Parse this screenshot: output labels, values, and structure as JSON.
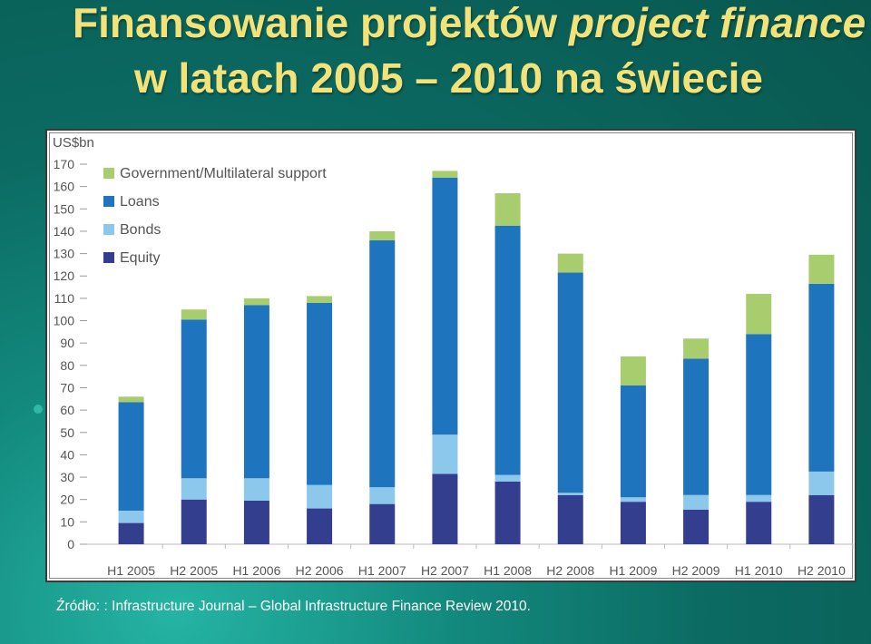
{
  "slide": {
    "title_part1": "Finansowanie projektów ",
    "title_part1_italic": "project finance",
    "title_line2": "w latach 2005 – 2010 na świecie",
    "source": "Źródło: : Infrastructure Journal – Global Infrastructure Finance Review 2010."
  },
  "chart_data": {
    "type": "bar",
    "stacked": true,
    "ylabel": "US$bn",
    "ylim": [
      0,
      170
    ],
    "ytick_step": 10,
    "grid": false,
    "legend_position": "top-left",
    "categories": [
      "H1 2005",
      "H2 2005",
      "H1 2006",
      "H2 2006",
      "H1 2007",
      "H2 2007",
      "H1 2008",
      "H2 2008",
      "H1 2009",
      "H2 2009",
      "H1 2010",
      "H2 2010"
    ],
    "series": [
      {
        "name": "Equity",
        "color": "#333e8f",
        "values": [
          9.5,
          20,
          19.5,
          16,
          18,
          31.5,
          28,
          22,
          19,
          15.5,
          19,
          22
        ]
      },
      {
        "name": "Bonds",
        "color": "#8cc8ec",
        "values": [
          5.5,
          9.5,
          10,
          10.5,
          7.5,
          17.5,
          3,
          1,
          2,
          6.5,
          3,
          10.5
        ]
      },
      {
        "name": "Loans",
        "color": "#1f74be",
        "values": [
          48.5,
          71,
          77.5,
          81.5,
          110.5,
          115,
          111.5,
          98.5,
          50,
          61,
          72,
          84
        ]
      },
      {
        "name": "Government/Multilateral support",
        "color": "#a8cd6e",
        "values": [
          2.5,
          4.5,
          3,
          3,
          4,
          3,
          14.5,
          8.5,
          13,
          9,
          18,
          13
        ]
      }
    ]
  }
}
